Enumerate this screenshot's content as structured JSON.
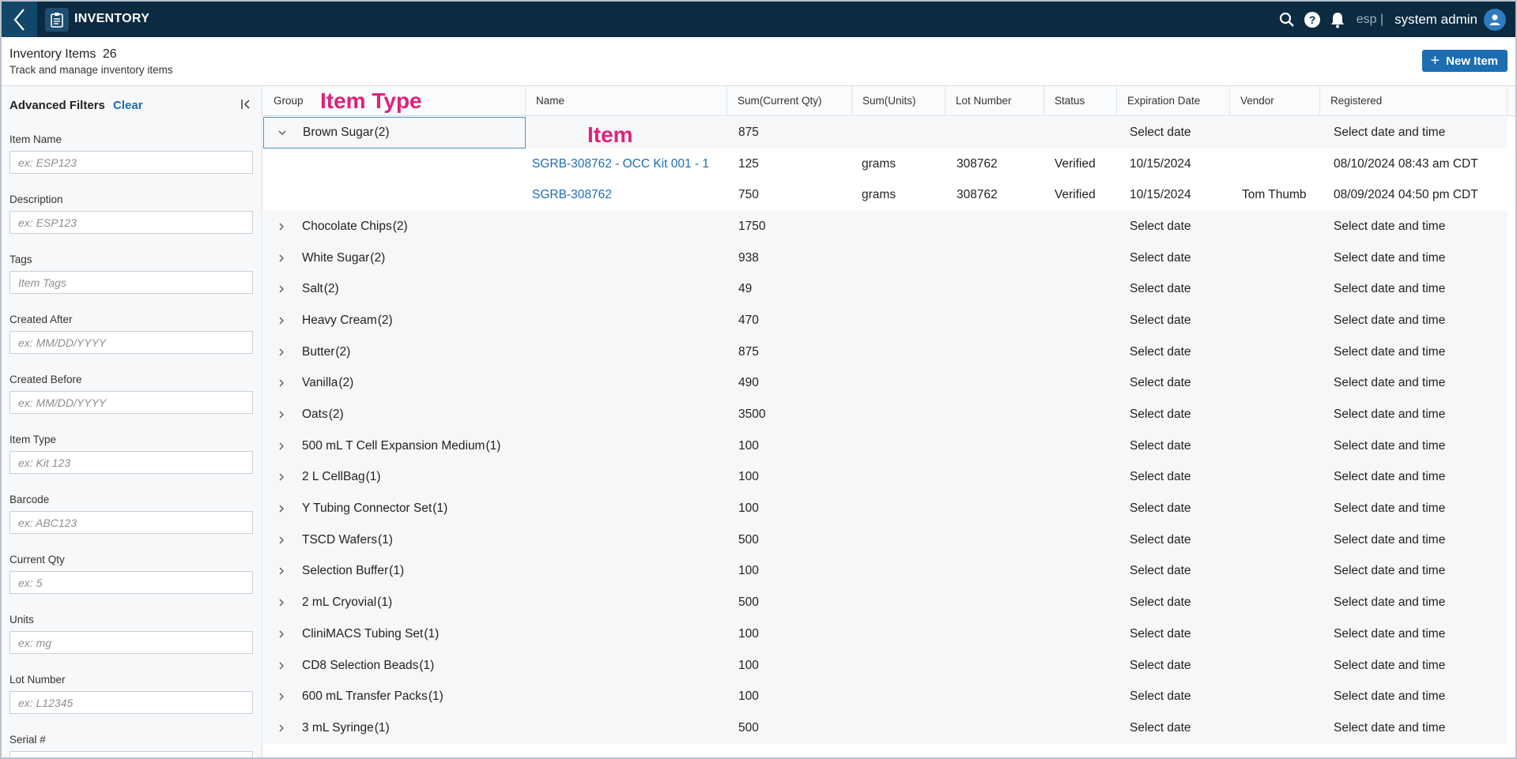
{
  "app": {
    "title": "INVENTORY",
    "tenant": "esp |",
    "user": "system admin"
  },
  "header": {
    "title": "Inventory Items",
    "count": "26",
    "subtitle": "Track and manage inventory items",
    "new_button": "New Item"
  },
  "filters": {
    "title": "Advanced Filters",
    "clear": "Clear",
    "fields": [
      {
        "label": "Item Name",
        "placeholder": "ex: ESP123"
      },
      {
        "label": "Description",
        "placeholder": "ex: ESP123"
      },
      {
        "label": "Tags",
        "placeholder": "Item Tags"
      },
      {
        "label": "Created After",
        "placeholder": "ex: MM/DD/YYYY"
      },
      {
        "label": "Created Before",
        "placeholder": "ex: MM/DD/YYYY"
      },
      {
        "label": "Item Type",
        "placeholder": "ex: Kit 123"
      },
      {
        "label": "Barcode",
        "placeholder": "ex: ABC123"
      },
      {
        "label": "Current Qty",
        "placeholder": "ex: 5"
      },
      {
        "label": "Units",
        "placeholder": "ex: mg"
      },
      {
        "label": "Lot Number",
        "placeholder": "ex: L12345"
      },
      {
        "label": "Serial #",
        "placeholder": ""
      }
    ]
  },
  "annotations": {
    "item_type": "Item Type",
    "item": "Item"
  },
  "table": {
    "columns": [
      "Group",
      "Name",
      "Sum(Current Qty)",
      "Sum(Units)",
      "Lot Number",
      "Status",
      "Expiration Date",
      "Vendor",
      "Registered"
    ],
    "rows": [
      {
        "group": "Brown Sugar",
        "count": "(2)",
        "qty": "875",
        "exp": "Select date",
        "reg": "Select date and time",
        "expanded": true,
        "selected": true,
        "children": [
          {
            "name": "SGRB-308762 - OCC Kit 001 - 1",
            "qty": "125",
            "units": "grams",
            "lot": "308762",
            "status": "Verified",
            "exp": "10/15/2024",
            "vendor": "",
            "reg": "08/10/2024 08:43 am CDT"
          },
          {
            "name": "SGRB-308762",
            "qty": "750",
            "units": "grams",
            "lot": "308762",
            "status": "Verified",
            "exp": "10/15/2024",
            "vendor": "Tom Thumb",
            "reg": "08/09/2024 04:50 pm CDT"
          }
        ]
      },
      {
        "group": "Chocolate Chips",
        "count": "(2)",
        "qty": "1750",
        "exp": "Select date",
        "reg": "Select date and time"
      },
      {
        "group": "White Sugar",
        "count": "(2)",
        "qty": "938",
        "exp": "Select date",
        "reg": "Select date and time"
      },
      {
        "group": "Salt",
        "count": "(2)",
        "qty": "49",
        "exp": "Select date",
        "reg": "Select date and time"
      },
      {
        "group": "Heavy Cream",
        "count": "(2)",
        "qty": "470",
        "exp": "Select date",
        "reg": "Select date and time"
      },
      {
        "group": "Butter",
        "count": "(2)",
        "qty": "875",
        "exp": "Select date",
        "reg": "Select date and time"
      },
      {
        "group": "Vanilla",
        "count": "(2)",
        "qty": "490",
        "exp": "Select date",
        "reg": "Select date and time"
      },
      {
        "group": "Oats",
        "count": "(2)",
        "qty": "3500",
        "exp": "Select date",
        "reg": "Select date and time"
      },
      {
        "group": "500 mL T Cell Expansion Medium",
        "count": "(1)",
        "qty": "100",
        "exp": "Select date",
        "reg": "Select date and time"
      },
      {
        "group": "2 L CellBag",
        "count": "(1)",
        "qty": "100",
        "exp": "Select date",
        "reg": "Select date and time"
      },
      {
        "group": "Y Tubing Connector Set",
        "count": "(1)",
        "qty": "100",
        "exp": "Select date",
        "reg": "Select date and time"
      },
      {
        "group": "TSCD Wafers",
        "count": "(1)",
        "qty": "500",
        "exp": "Select date",
        "reg": "Select date and time"
      },
      {
        "group": "Selection Buffer",
        "count": "(1)",
        "qty": "100",
        "exp": "Select date",
        "reg": "Select date and time"
      },
      {
        "group": "2 mL Cryovial",
        "count": "(1)",
        "qty": "500",
        "exp": "Select date",
        "reg": "Select date and time"
      },
      {
        "group": "CliniMACS Tubing Set",
        "count": "(1)",
        "qty": "100",
        "exp": "Select date",
        "reg": "Select date and time"
      },
      {
        "group": "CD8 Selection Beads",
        "count": "(1)",
        "qty": "100",
        "exp": "Select date",
        "reg": "Select date and time"
      },
      {
        "group": "600 mL Transfer Packs",
        "count": "(1)",
        "qty": "100",
        "exp": "Select date",
        "reg": "Select date and time"
      },
      {
        "group": "3 mL Syringe",
        "count": "(1)",
        "qty": "500",
        "exp": "Select date",
        "reg": "Select date and time"
      }
    ]
  }
}
